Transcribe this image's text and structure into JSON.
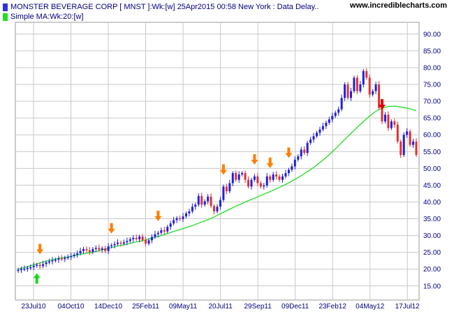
{
  "header": {
    "series_label": "MONSTER BEVERAGE CORP [ MNST ]:Wk:[w]  25Apr2015 00:58 New York : Data Delay..",
    "ma_label": "Simple MA:Wk:20:[w]",
    "site": "www.incrediblecharts.com"
  },
  "colors": {
    "up": "#1f1fe0",
    "down": "#e03030",
    "ma": "#22dd22",
    "grid": "#c8c8c8",
    "axis_text": "#000080",
    "arrow_up_signal": "#1ed41e",
    "arrow_down_signal": "#ff7f00",
    "arrow_top_signal": "#e00000"
  },
  "chart_data": {
    "type": "candlestick",
    "y_axis": {
      "ticks": [
        "15.00",
        "20.00",
        "25.00",
        "30.00",
        "35.00",
        "40.00",
        "45.00",
        "50.00",
        "55.00",
        "60.00",
        "65.00",
        "70.00",
        "75.00",
        "80.00",
        "85.00",
        "90.00"
      ],
      "range": [
        10.8,
        93.5
      ],
      "side": "right"
    },
    "x_axis": {
      "labels": [
        "23Jul10",
        "04Oct10",
        "14Dec10",
        "25Feb11",
        "09May11",
        "20Jul11",
        "29Sep11",
        "09Dec11",
        "23Feb12",
        "04May12",
        "17Jul12"
      ]
    },
    "grid": true,
    "series": [
      {
        "name": "MNST",
        "close": [
          19.8,
          20.0,
          20.1,
          20.4,
          20.6,
          21.0,
          21.3,
          20.9,
          21.5,
          22.0,
          22.3,
          22.6,
          22.8,
          23.2,
          23.0,
          23.4,
          23.6,
          23.9,
          24.3,
          24.7,
          25.4,
          26.0,
          25.6,
          25.1,
          26.0,
          26.3,
          25.8,
          26.2,
          25.4,
          26.8,
          27.1,
          27.5,
          27.9,
          27.6,
          28.0,
          28.4,
          28.9,
          29.3,
          28.9,
          29.7,
          28.7,
          27.6,
          28.6,
          29.6,
          30.4,
          30.8,
          31.6,
          31.2,
          32.6,
          33.6,
          34.6,
          35.2,
          34.9,
          35.7,
          36.6,
          37.2,
          38.6,
          39.2,
          41.8,
          39.2,
          40.2,
          41.6,
          38.8,
          37.2,
          38.6,
          40.6,
          44.6,
          43.2,
          45.6,
          48.6,
          46.6,
          48.2,
          48.6,
          46.6,
          44.6,
          46.6,
          47.6,
          45.6,
          44.6,
          44.9,
          47.6,
          46.6,
          48.2,
          47.6,
          46.6,
          47.6,
          48.6,
          49.6,
          50.6,
          52.6,
          53.6,
          55.6,
          54.6,
          57.6,
          58.6,
          59.6,
          60.6,
          61.6,
          62.6,
          63.6,
          64.6,
          65.6,
          66.6,
          67.6,
          71.0,
          75.0,
          71.0,
          73.0,
          77.0,
          73.0,
          75.0,
          79.0,
          77.0,
          72.0,
          73.0,
          75.0,
          68.0,
          64.0,
          66.0,
          62.0,
          64.0,
          63.0,
          58.0,
          54.0,
          60.0,
          61.0,
          57.0,
          58.0,
          54.0
        ],
        "labelled_closes": []
      },
      {
        "name": "Simple MA:Wk:20:[w]",
        "values": [
          20.0,
          20.5,
          21.1,
          21.7,
          22.3,
          22.8,
          23.2,
          23.5,
          23.9,
          24.3,
          24.7,
          25.0,
          25.5,
          26.0,
          26.5,
          27.0,
          27.4,
          27.9,
          28.3,
          28.8,
          29.3,
          29.9,
          30.5,
          31.2,
          31.8,
          32.4,
          33.1,
          33.9,
          34.6,
          35.5,
          36.5,
          37.5,
          38.5,
          39.4,
          40.3,
          41.1,
          42.0,
          42.8,
          43.7,
          44.6,
          45.6,
          46.7,
          47.9,
          49.2,
          50.6,
          52.2,
          53.9,
          55.8,
          57.8,
          59.8,
          61.8,
          63.6,
          65.5,
          67.0,
          68.0,
          68.5,
          68.5,
          68.2,
          67.8,
          67.2
        ]
      }
    ],
    "signals": [
      {
        "kind": "buy",
        "at_week": 6,
        "color": "green",
        "position": "below"
      },
      {
        "kind": "sell",
        "at_week": 7,
        "color": "orange",
        "position": "above"
      },
      {
        "kind": "sell",
        "at_week": 30,
        "color": "orange",
        "position": "above"
      },
      {
        "kind": "sell",
        "at_week": 45,
        "color": "orange",
        "position": "above"
      },
      {
        "kind": "sell",
        "at_week": 66,
        "color": "orange",
        "position": "above"
      },
      {
        "kind": "sell",
        "at_week": 76,
        "color": "orange",
        "position": "above"
      },
      {
        "kind": "sell",
        "at_week": 81,
        "color": "orange",
        "position": "above"
      },
      {
        "kind": "sell",
        "at_week": 87,
        "color": "orange",
        "position": "above"
      },
      {
        "kind": "sell",
        "at_week": 117,
        "color": "red",
        "position": "above"
      }
    ]
  }
}
